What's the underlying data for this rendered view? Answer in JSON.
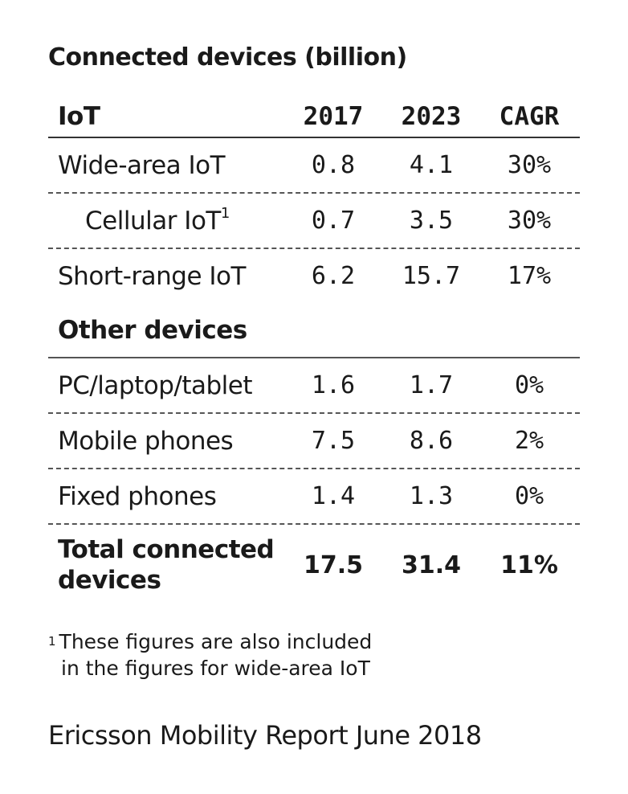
{
  "title": "Connected devices (billion)",
  "columns": [
    "2017",
    "2023",
    "CAGR"
  ],
  "sections": [
    {
      "heading": "IoT",
      "rows": [
        {
          "label": "Wide-area IoT",
          "v2017": "0.8",
          "v2023": "4.1",
          "cagr": "30%"
        },
        {
          "label": "Cellular IoT",
          "footnote_mark": "1",
          "v2017": "0.7",
          "v2023": "3.5",
          "cagr": "30%"
        },
        {
          "label": "Short-range IoT",
          "v2017": "6.2",
          "v2023": "15.7",
          "cagr": "17%"
        }
      ]
    },
    {
      "heading": "Other devices",
      "rows": [
        {
          "label": "PC/laptop/tablet",
          "v2017": "1.6",
          "v2023": "1.7",
          "cagr": "0%"
        },
        {
          "label": "Mobile phones",
          "v2017": "7.5",
          "v2023": "8.6",
          "cagr": "2%"
        },
        {
          "label": "Fixed phones",
          "v2017": "1.4",
          "v2023": "1.3",
          "cagr": "0%"
        }
      ]
    }
  ],
  "total": {
    "label": "Total connected devices",
    "v2017": "17.5",
    "v2023": "31.4",
    "cagr": "11%"
  },
  "footnote": {
    "mark": "1",
    "line1": "These figures are also included",
    "line2": "in the figures for wide-area IoT"
  },
  "source": "Ericsson Mobility Report June 2018"
}
